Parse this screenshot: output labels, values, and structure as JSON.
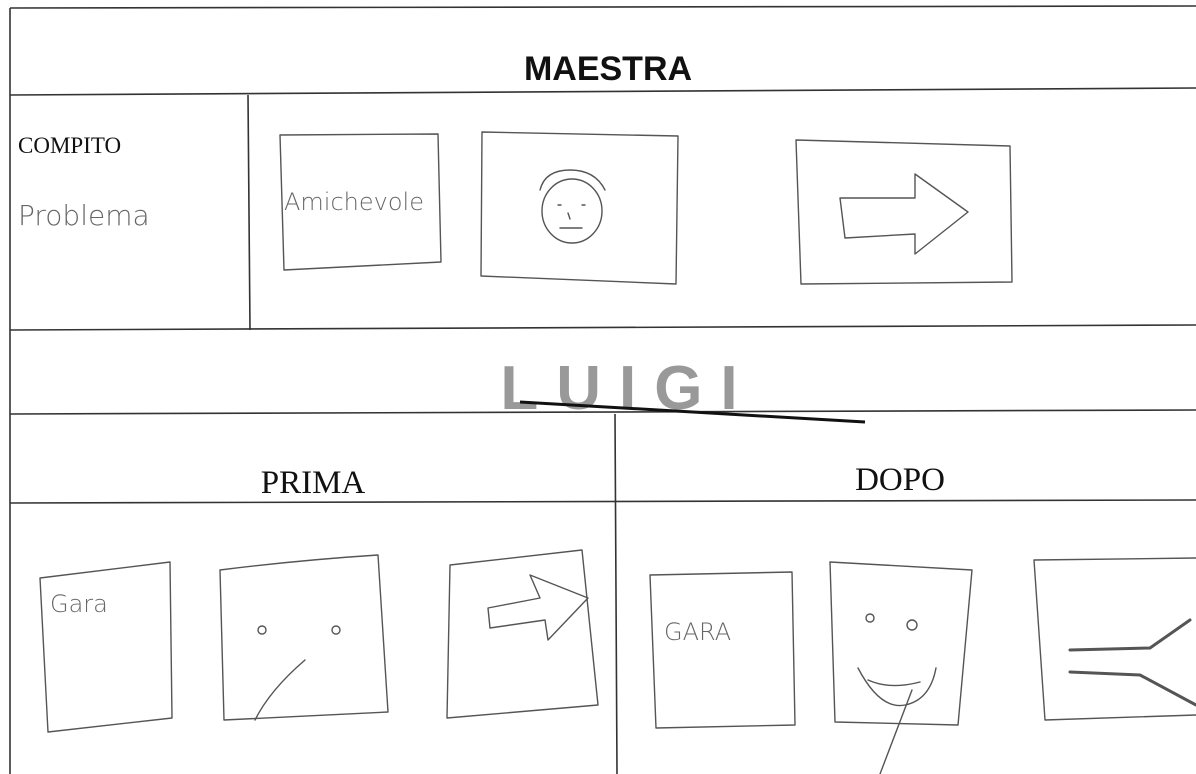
{
  "header": {
    "title": "MAESTRA"
  },
  "task": {
    "label": "COMPITO",
    "value": "Problema",
    "card": "Amichevole"
  },
  "student": {
    "name": "LUIGI"
  },
  "before": {
    "title": "PRIMA",
    "card": "Gara"
  },
  "after": {
    "title": "DOPO",
    "card": "GARA"
  }
}
